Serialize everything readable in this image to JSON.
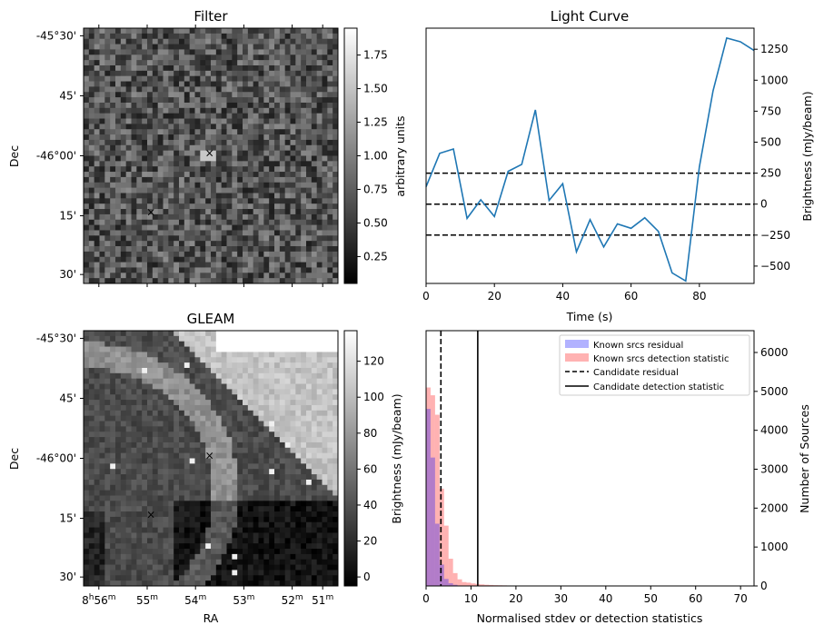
{
  "chart_data": [
    {
      "type": "heatmap",
      "title": "Filter",
      "xlabel": "",
      "ylabel": "Dec",
      "dec_ticks": [
        "-45°30'",
        "45'",
        "-46°00'",
        "15'",
        "30'"
      ],
      "colorbar_label": "arbitrary units",
      "colorbar_ticks": [
        0.25,
        0.5,
        0.75,
        1.0,
        1.25,
        1.5,
        1.75
      ],
      "colorbar_range": [
        0.05,
        1.95
      ],
      "markers": [
        {
          "symbol": "x",
          "color": "#ff0000",
          "position": "center"
        },
        {
          "symbol": "x",
          "color": "#0000ff",
          "position": "lower-left"
        }
      ]
    },
    {
      "type": "line",
      "title": "Light Curve",
      "xlabel": "Time (s)",
      "ylabel": "Brightness (mJy/beam)",
      "xlim": [
        0,
        96
      ],
      "ylim": [
        -640,
        1420
      ],
      "x_ticks": [
        0,
        20,
        40,
        60,
        80
      ],
      "y_ticks": [
        -500,
        -250,
        0,
        250,
        500,
        750,
        1000,
        1250
      ],
      "series": [
        {
          "color": "#1f77b4",
          "x": [
            0,
            4,
            8,
            12,
            16,
            20,
            24,
            28,
            32,
            36,
            40,
            44,
            48,
            52,
            56,
            60,
            64,
            68,
            72,
            76,
            80,
            84,
            88,
            92,
            96
          ],
          "y": [
            140,
            410,
            445,
            -115,
            35,
            -100,
            265,
            320,
            760,
            30,
            165,
            -385,
            -125,
            -345,
            -160,
            -195,
            -110,
            -220,
            -555,
            -620,
            300,
            915,
            1340,
            1310,
            1240
          ]
        }
      ],
      "hlines": [
        {
          "y": 250,
          "style": "dashed"
        },
        {
          "y": 0,
          "style": "dashed"
        },
        {
          "y": -250,
          "style": "dashed"
        }
      ]
    },
    {
      "type": "heatmap",
      "title": "GLEAM",
      "xlabel": "RA",
      "ylabel": "Dec",
      "dec_ticks": [
        "-45°30'",
        "45'",
        "-46°00'",
        "15'",
        "30'"
      ],
      "ra_ticks": [
        {
          "main": "8",
          "sup1": "h",
          "main2": "56",
          "sup2": "m"
        },
        {
          "main": "55",
          "sup1": "m"
        },
        {
          "main": "54",
          "sup1": "m"
        },
        {
          "main": "53",
          "sup1": "m"
        },
        {
          "main": "52",
          "sup1": "m"
        },
        {
          "main": "51",
          "sup1": "m"
        }
      ],
      "colorbar_label": "Brightness (mJy/beam)",
      "colorbar_ticks": [
        0,
        20,
        40,
        60,
        80,
        100,
        120
      ],
      "colorbar_range": [
        -5,
        137
      ],
      "markers": [
        {
          "symbol": "x",
          "color": "#ff0000",
          "position": "center"
        },
        {
          "symbol": "x",
          "color": "#0000ff",
          "position": "lower-left"
        }
      ]
    },
    {
      "type": "bar",
      "title": "",
      "xlabel": "Normalised stdev or detection statistics",
      "ylabel": "Number of Sources",
      "xlim": [
        0,
        73
      ],
      "ylim": [
        0,
        6560
      ],
      "x_ticks": [
        0,
        10,
        20,
        30,
        40,
        50,
        60,
        70
      ],
      "y_ticks": [
        0,
        1000,
        2000,
        3000,
        4000,
        5000,
        6000
      ],
      "bin_width": 1.0,
      "series": [
        {
          "name": "Known srcs residual",
          "color": "#0000ff",
          "alpha": 0.3,
          "values": [
            4550,
            3300,
            1600,
            550,
            180,
            70,
            30,
            12,
            5,
            2
          ]
        },
        {
          "name": "Known srcs detection statistic",
          "color": "#ff0000",
          "alpha": 0.3,
          "values": [
            5100,
            4900,
            4400,
            2500,
            1550,
            700,
            330,
            170,
            100,
            85,
            65,
            50,
            40,
            30,
            25,
            20,
            18,
            15,
            12,
            10,
            10,
            8,
            7,
            6,
            5,
            5,
            4,
            4,
            3,
            3,
            3,
            2,
            2,
            2,
            2,
            1,
            1,
            1,
            1,
            1,
            1,
            1,
            1,
            1,
            1,
            1,
            1,
            1,
            1,
            1,
            1,
            1,
            1,
            1,
            1,
            1,
            1,
            1,
            1,
            1,
            1,
            1,
            1,
            1,
            1,
            1,
            1,
            1,
            1,
            1
          ]
        }
      ],
      "vlines": [
        {
          "x": 3.3,
          "style": "dashed",
          "name": "Candidate residual"
        },
        {
          "x": 11.5,
          "style": "solid",
          "name": "Candidate detection statistic"
        }
      ],
      "legend_position": "top-right"
    }
  ]
}
